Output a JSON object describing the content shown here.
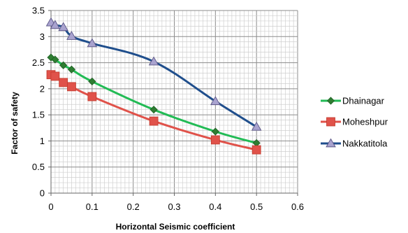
{
  "chart_data": {
    "type": "line",
    "xlabel": "Horizontal Seismic coefficient",
    "ylabel": "Factor of safety",
    "xlim": [
      0,
      0.6
    ],
    "ylim": [
      0,
      3.5
    ],
    "xticks": [
      "0",
      "0.1",
      "0.2",
      "0.3",
      "0.4",
      "0.5",
      "0.6"
    ],
    "yticks": [
      "0",
      "0.5",
      "1",
      "1.5",
      "2",
      "2.5",
      "3",
      "3.5"
    ],
    "grid": "major and minor gridlines",
    "legend_position": "right",
    "series": [
      {
        "name": "Dhainagar",
        "color": "#22bb55",
        "marker": "diamond",
        "x": [
          0,
          0.01,
          0.03,
          0.05,
          0.1,
          0.25,
          0.4,
          0.5
        ],
        "y": [
          2.6,
          2.56,
          2.45,
          2.37,
          2.14,
          1.6,
          1.18,
          0.96
        ]
      },
      {
        "name": "Moheshpur",
        "color": "#e0524a",
        "marker": "square",
        "x": [
          0,
          0.01,
          0.03,
          0.05,
          0.1,
          0.25,
          0.4,
          0.5
        ],
        "y": [
          2.27,
          2.24,
          2.12,
          2.04,
          1.85,
          1.38,
          1.02,
          0.83
        ]
      },
      {
        "name": "Nakkatitola",
        "color": "#1f4e8c",
        "marker": "triangle",
        "x": [
          0,
          0.01,
          0.03,
          0.05,
          0.1,
          0.25,
          0.4,
          0.5
        ],
        "y": [
          3.27,
          3.22,
          3.18,
          3.01,
          2.87,
          2.52,
          1.76,
          1.27
        ]
      }
    ]
  }
}
